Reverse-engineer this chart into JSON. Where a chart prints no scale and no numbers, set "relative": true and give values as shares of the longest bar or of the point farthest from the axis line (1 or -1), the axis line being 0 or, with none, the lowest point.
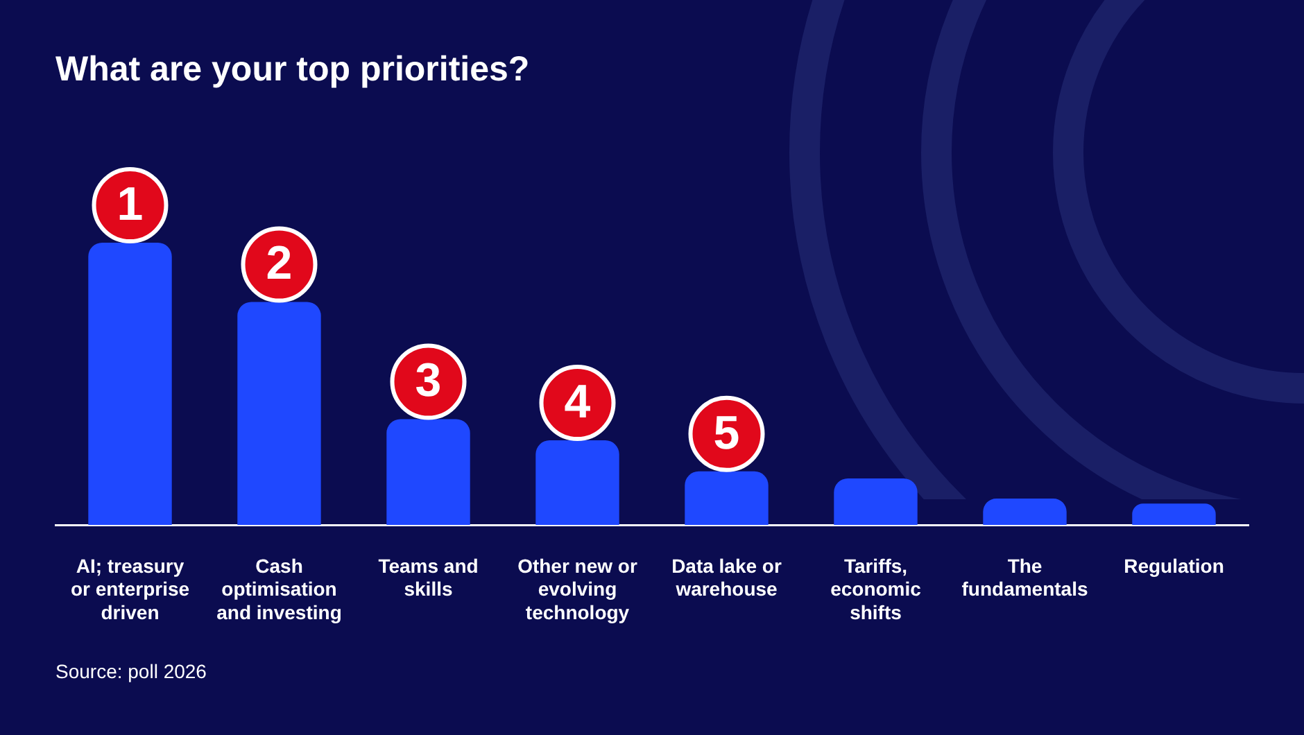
{
  "chart_data": {
    "type": "bar",
    "title": "What are your top priorities?",
    "relative": true,
    "color": "#1f48ff",
    "categories": [
      "AI; treasury or enterprise driven",
      "Cash optimisation and investing",
      "Teams and skills",
      "Other new or evolving technology",
      "Data lake or warehouse",
      "Tariffs, economic shifts",
      "The fundamentals",
      "Regulation"
    ],
    "values": [
      1,
      0.79,
      0.375,
      0.3,
      0.19,
      0.165,
      0.094,
      0.076
    ],
    "annotations": [
      {
        "text": "1",
        "x": "AI; treasury or enterprise driven",
        "y": 1
      },
      {
        "text": "2",
        "x": "Cash optimisation and investing",
        "y": 0.79
      },
      {
        "text": "3",
        "x": "Teams and skills",
        "y": 0.375
      },
      {
        "text": "4",
        "x": "Other new or evolving technology",
        "y": 0.3
      },
      {
        "text": "5",
        "x": "Data lake or warehouse",
        "y": 0.19
      },
      "Source: poll 2026"
    ]
  }
}
